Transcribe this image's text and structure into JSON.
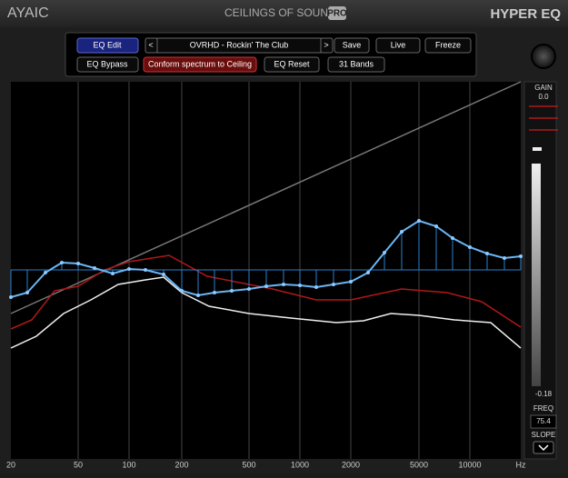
{
  "header": {
    "logo": "AYAIC",
    "product": "CEILINGS OF SOUND",
    "edition": "PRO",
    "plugin": "HYPER EQ"
  },
  "toolbar": {
    "eq_edit": "EQ Edit",
    "prev": "<",
    "preset": "OVRHD - Rockin' The Club",
    "next": ">",
    "save": "Save",
    "live": "Live",
    "freeze": "Freeze",
    "eq_bypass": "EQ Bypass",
    "conform": "Conform spectrum to Ceiling",
    "eq_reset": "EQ Reset",
    "bands": "31 Bands"
  },
  "graph": {
    "freq_labels": [
      "20",
      "50",
      "100",
      "200",
      "500",
      "1000",
      "2000",
      "5000",
      "10000",
      "Hz"
    ]
  },
  "side_panel": {
    "gain_label": "GAIN",
    "gain_value": "0.0",
    "level_value": "-0.18",
    "freq_label": "FREQ",
    "freq_value": "75.4",
    "slope_label": "SLOPE"
  }
}
